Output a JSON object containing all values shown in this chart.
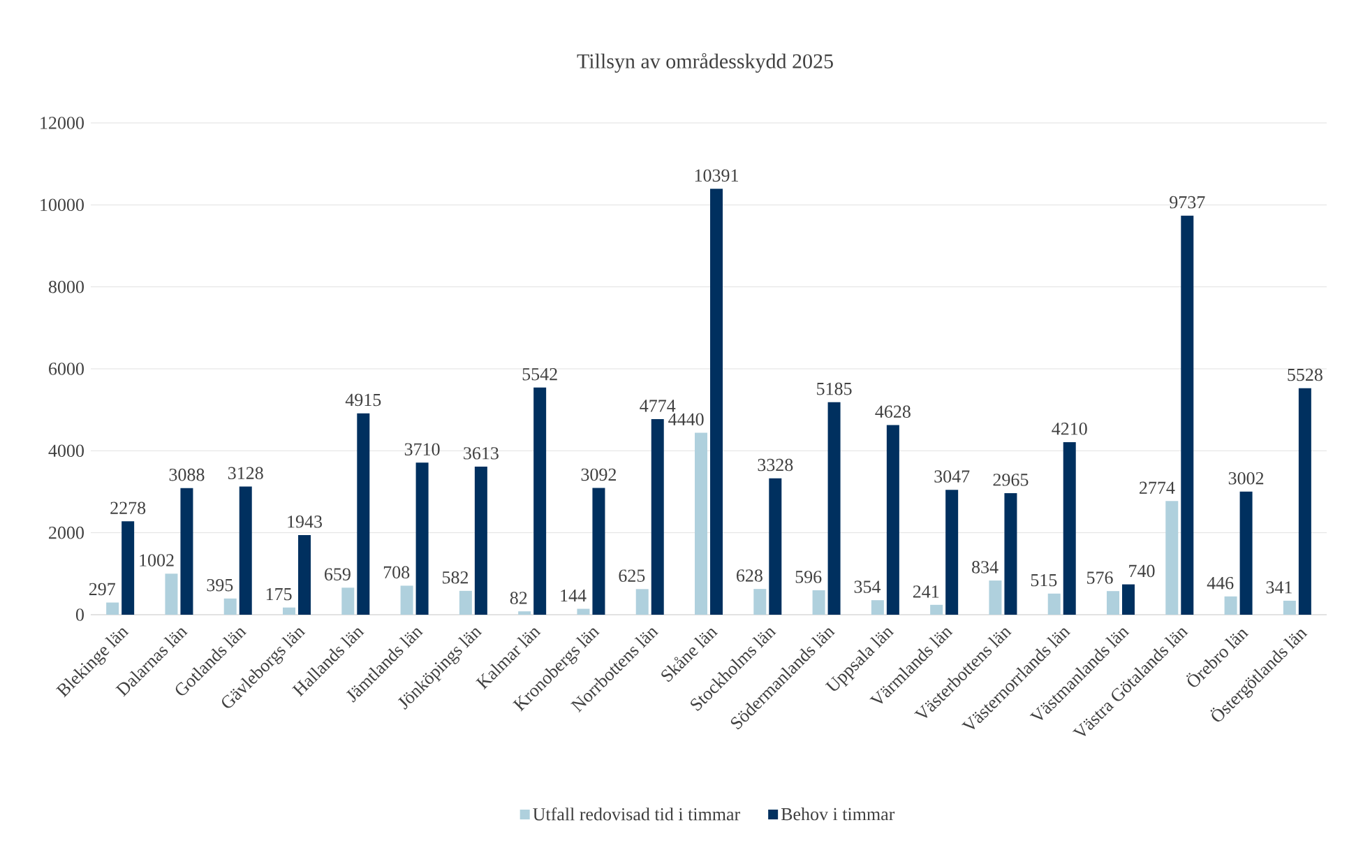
{
  "chart_data": {
    "type": "bar",
    "title": "Tillsyn av områdesskydd 2025",
    "categories": [
      "Blekinge län",
      "Dalarnas län",
      "Gotlands län",
      "Gävleborgs län",
      "Hallands län",
      "Jämtlands län",
      "Jönköpings län",
      "Kalmar län",
      "Kronobergs län",
      "Norrbottens län",
      "Skåne län",
      "Stockholms län",
      "Södermanlands län",
      "Uppsala län",
      "Värmlands län",
      "Västerbottens län",
      "Västernorrlands län",
      "Västmanlands län",
      "Västra Götalands län",
      "Örebro län",
      "Östergötlands län"
    ],
    "series": [
      {
        "name": "Utfall redovisad tid i timmar",
        "color": "#afd0dd",
        "values": [
          297,
          1002,
          395,
          175,
          659,
          708,
          582,
          82,
          144,
          625,
          4440,
          628,
          596,
          354,
          241,
          834,
          515,
          576,
          2774,
          446,
          341
        ]
      },
      {
        "name": "Behov i timmar",
        "color": "#00305f",
        "values": [
          2278,
          3088,
          3128,
          1943,
          4915,
          3710,
          3613,
          5542,
          3092,
          4774,
          10391,
          3328,
          5185,
          4628,
          3047,
          2965,
          4210,
          740,
          9737,
          3002,
          5528
        ]
      }
    ],
    "ylim": [
      0,
      12000
    ],
    "yticks": [
      0,
      2000,
      4000,
      6000,
      8000,
      10000,
      12000
    ],
    "grid": "y",
    "legend": "bottom",
    "data_labels": true
  }
}
